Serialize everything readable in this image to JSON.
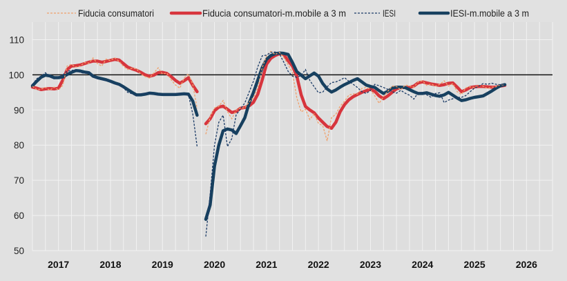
{
  "chart_data": {
    "type": "line",
    "title": "",
    "xlabel": "",
    "ylabel": "",
    "ylim": [
      50,
      115
    ],
    "xlim": [
      "2017-01",
      "2026-12"
    ],
    "y_ticks": [
      "50",
      "60",
      "70",
      "80",
      "90",
      "100",
      "110"
    ],
    "x_ticks": [
      "2017",
      "2018",
      "2019",
      "2020",
      "2021",
      "2022",
      "2023",
      "2024",
      "2025",
      "2026"
    ],
    "reference_line": 100,
    "grid": true,
    "legend_placement": "top",
    "x": [
      "2017-01",
      "2017-02",
      "2017-03",
      "2017-04",
      "2017-05",
      "2017-06",
      "2017-07",
      "2017-08",
      "2017-09",
      "2017-10",
      "2017-11",
      "2017-12",
      "2018-01",
      "2018-02",
      "2018-03",
      "2018-04",
      "2018-05",
      "2018-06",
      "2018-07",
      "2018-08",
      "2018-09",
      "2018-10",
      "2018-11",
      "2018-12",
      "2019-01",
      "2019-02",
      "2019-03",
      "2019-04",
      "2019-05",
      "2019-06",
      "2019-07",
      "2019-08",
      "2019-09",
      "2019-10",
      "2019-11",
      "2019-12",
      "2020-01",
      "2020-02",
      "2020-03",
      "2020-04",
      "2020-05",
      "2020-06",
      "2020-07",
      "2020-08",
      "2020-09",
      "2020-10",
      "2020-11",
      "2020-12",
      "2021-01",
      "2021-02",
      "2021-03",
      "2021-04",
      "2021-05",
      "2021-06",
      "2021-07",
      "2021-08",
      "2021-09",
      "2021-10",
      "2021-11",
      "2021-12",
      "2022-01",
      "2022-02",
      "2022-03",
      "2022-04",
      "2022-05",
      "2022-06",
      "2022-07",
      "2022-08",
      "2022-09",
      "2022-10",
      "2022-11",
      "2022-12",
      "2023-01",
      "2023-02",
      "2023-03",
      "2023-04",
      "2023-05",
      "2023-06",
      "2023-07",
      "2023-08",
      "2023-09",
      "2023-10",
      "2023-11",
      "2023-12",
      "2024-01",
      "2024-02",
      "2024-03",
      "2024-04",
      "2024-05",
      "2024-06",
      "2024-07",
      "2024-08",
      "2024-09",
      "2024-10",
      "2024-11",
      "2024-12",
      "2025-01",
      "2025-02",
      "2025-03",
      "2025-04",
      "2025-05",
      "2025-06",
      "2025-07",
      "2025-08",
      "2025-09",
      "2025-10",
      "2025-11",
      "2025-12",
      "2026-01",
      "2026-02"
    ],
    "series": [
      {
        "name": "Fiducia consumatori",
        "color": "#f0a06a",
        "style": "dashed-thin",
        "values": [
          96.8,
          95.8,
          95.9,
          96.4,
          95.6,
          96.5,
          95.7,
          97,
          102.5,
          103,
          102.2,
          102.5,
          103.5,
          103.3,
          104.8,
          103.2,
          102.5,
          104.5,
          104,
          104.8,
          103.8,
          102.4,
          101.5,
          101.9,
          101.7,
          100.2,
          99.5,
          99.1,
          100.5,
          102,
          100.2,
          100.5,
          98.6,
          97.1,
          96.2,
          99.1,
          100.3,
          97.2,
          90.4,
          null,
          83.1,
          88,
          90.6,
          91,
          92.7,
          89.5,
          87.5,
          89.9,
          90.6,
          90.6,
          92.3,
          93.5,
          96.3,
          102,
          105.4,
          106.7,
          105.8,
          106.4,
          104.9,
          102.9,
          100.6,
          93.4,
          89.5,
          90.2,
          87.3,
          88.9,
          86.2,
          85.5,
          81.2,
          87.8,
          88.8,
          91.1,
          92.5,
          94.2,
          94.6,
          94.5,
          96.1,
          96.4,
          95.8,
          94,
          91.9,
          93.8,
          95.3,
          96.8,
          96.7,
          95.7,
          97.1,
          96.9,
          96.5,
          98,
          98.3,
          97,
          97.4,
          96.8,
          97.3,
          98.3,
          96.8,
          97.5,
          95.2,
          94.4,
          96.3,
          96.6,
          96.4,
          97,
          96.8,
          96.1,
          96.5,
          96.6,
          97.2,
          97.1
        ]
      },
      {
        "name": "Fiducia consumatori-m.mobile a 3 m",
        "color": "#d7353d",
        "style": "solid-thick",
        "values": [
          96.5,
          96.2,
          95.8,
          96,
          96.1,
          96,
          96.2,
          98.5,
          101.5,
          102.5,
          102.6,
          102.8,
          103.2,
          103.6,
          103.9,
          103.9,
          103.6,
          103.8,
          104.1,
          104.4,
          104.2,
          103.2,
          102.2,
          101.7,
          101.3,
          100.7,
          100,
          99.6,
          99.9,
          100.6,
          100.7,
          100.4,
          99.5,
          98.4,
          97.6,
          98.3,
          99.2,
          97,
          95.2,
          null,
          86.1,
          87.5,
          89.8,
          90.8,
          91.1,
          90.2,
          89.3,
          89.6,
          90.5,
          90.7,
          91.2,
          92.2,
          94.5,
          98.5,
          103,
          104.7,
          105.5,
          106,
          105.8,
          104,
          102.5,
          99.6,
          94.3,
          91,
          90,
          89.2,
          87.7,
          86.5,
          85.3,
          84.8,
          86.5,
          89.5,
          91.5,
          92.9,
          93.8,
          94.4,
          95,
          95.5,
          95.9,
          95.3,
          94,
          93.2,
          94,
          95,
          96,
          96.4,
          96.4,
          96.4,
          96.8,
          97.7,
          98,
          97.7,
          97.4,
          97.2,
          97,
          97.2,
          97.6,
          97.7,
          96.5,
          95.2,
          95.7,
          96.4,
          96.6,
          96.7,
          96.7,
          96.6,
          96.5,
          96.5,
          96.8,
          97
        ]
      },
      {
        "name": "IESI",
        "color": "#1a3a66",
        "style": "dashed-thin",
        "values": [
          97.2,
          98.9,
          99.6,
          100.6,
          99.4,
          98.9,
          99.3,
          100,
          101,
          101.3,
          101.3,
          100.7,
          100.4,
          100.8,
          99.5,
          98.9,
          98.6,
          98.4,
          98,
          97.4,
          97.1,
          96.3,
          95,
          94.6,
          94,
          94.6,
          94.7,
          94.9,
          94.6,
          94.3,
          94.5,
          94.3,
          94.2,
          94.6,
          94.7,
          94.5,
          94.3,
          88.8,
          79.6,
          null,
          54,
          66,
          80,
          86.5,
          88.5,
          79.6,
          81.9,
          88.6,
          90.3,
          92,
          95.1,
          98.2,
          102.3,
          105.4,
          105.6,
          106.4,
          106.5,
          105.9,
          103.6,
          101,
          99.6,
          99.3,
          99.8,
          101.5,
          98.4,
          96.6,
          94.9,
          95.1,
          96.6,
          97.8,
          98,
          98.5,
          99.2,
          98.2,
          97.3,
          96.4,
          95.2,
          94.7,
          95.6,
          97.3,
          96.9,
          96.4,
          95.9,
          95.2,
          94.8,
          95.6,
          94.8,
          94.2,
          93.1,
          94.9,
          95,
          94.3,
          93.6,
          94.7,
          94.9,
          92.1,
          92.8,
          93.2,
          93.6,
          93.6,
          94.1,
          95.2,
          96.2,
          96.8,
          97.5,
          97.3,
          97.6,
          97.3,
          97.2,
          97.4
        ]
      },
      {
        "name": "IESI-m.mobile a 3 m",
        "color": "#17405f",
        "style": "solid-thick",
        "values": [
          96.9,
          98.2,
          99.3,
          99.9,
          99.7,
          99.2,
          99.2,
          99.4,
          100.1,
          100.7,
          101.2,
          101.1,
          100.8,
          100.6,
          99.6,
          99.2,
          98.9,
          98.6,
          98.2,
          97.7,
          97.3,
          96.6,
          95.8,
          95,
          94.3,
          94.3,
          94.5,
          94.8,
          94.7,
          94.5,
          94.4,
          94.4,
          94.4,
          94.4,
          94.5,
          94.6,
          94.5,
          92.5,
          88.5,
          null,
          58.9,
          63,
          74,
          80,
          84.1,
          84.6,
          84.3,
          83.3,
          85.5,
          87.8,
          92,
          95,
          98.5,
          102,
          104.4,
          105.5,
          106,
          106.2,
          106.1,
          105.8,
          103.5,
          100.9,
          99.9,
          98.9,
          99.7,
          100.5,
          99.6,
          97.5,
          96,
          95.1,
          95.7,
          96.5,
          97.2,
          97.8,
          98.4,
          98.9,
          98,
          97.1,
          96.7,
          96.4,
          95.5,
          94.7,
          95.3,
          96.2,
          96.5,
          96.5,
          96.4,
          95.8,
          95.2,
          94.7,
          94.7,
          94.9,
          94.5,
          94.1,
          93.9,
          94.3,
          95,
          94.2,
          93.4,
          92.7,
          92.9,
          93.3,
          93.6,
          93.8,
          94,
          94.7,
          95.4,
          96.2,
          96.9,
          97.2
        ]
      }
    ]
  }
}
